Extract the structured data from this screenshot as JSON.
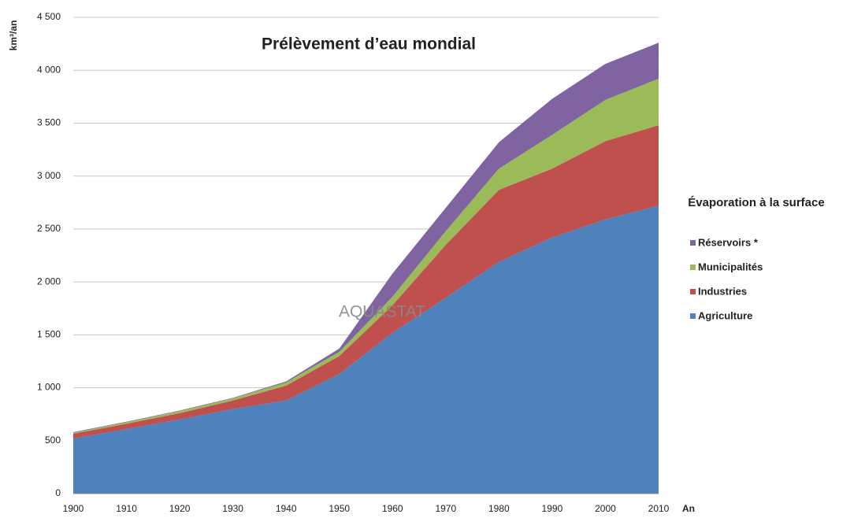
{
  "chart_data": {
    "type": "stacked_area",
    "title": "Prélèvement d’eau mondial",
    "ylabel": "km³/an",
    "xlabel": "An",
    "watermark": "AQUASTAT",
    "legend_title": "Évaporation à la surface",
    "x": [
      1900,
      1910,
      1920,
      1930,
      1940,
      1950,
      1960,
      1970,
      1980,
      1990,
      2000,
      2010
    ],
    "series": [
      {
        "name": "Agriculture",
        "color": "#4f81bd",
        "values": [
          520,
          610,
          700,
          800,
          880,
          1130,
          1520,
          1850,
          2190,
          2420,
          2590,
          2720
        ]
      },
      {
        "name": "Industries",
        "color": "#c0504d",
        "values": [
          45,
          50,
          60,
          80,
          140,
          170,
          260,
          500,
          680,
          650,
          740,
          760
        ]
      },
      {
        "name": "Municipalités",
        "color": "#9bbb59",
        "values": [
          10,
          15,
          20,
          20,
          30,
          40,
          80,
          130,
          200,
          320,
          390,
          440
        ]
      },
      {
        "name": "Réservoirs *",
        "color": "#8064a2",
        "values": [
          5,
          5,
          5,
          5,
          10,
          30,
          220,
          220,
          250,
          340,
          340,
          340
        ]
      }
    ],
    "xlim": [
      1900,
      2010
    ],
    "xticks": [
      1900,
      1910,
      1920,
      1930,
      1940,
      1950,
      1960,
      1970,
      1980,
      1990,
      2000,
      2010
    ],
    "ylim": [
      0,
      4500
    ],
    "yticks": [
      0,
      500,
      {
        "value": 1000,
        "label": "1 000"
      },
      {
        "value": 1500,
        "label": "1 500"
      },
      {
        "value": 2000,
        "label": "2 000"
      },
      {
        "value": 2500,
        "label": "2 500"
      },
      {
        "value": 3000,
        "label": "3 000"
      },
      {
        "value": 3500,
        "label": "3 500"
      },
      {
        "value": 4000,
        "label": "4 000"
      },
      {
        "value": 4500,
        "label": "4 500"
      }
    ],
    "grid": true,
    "legend": "right"
  }
}
